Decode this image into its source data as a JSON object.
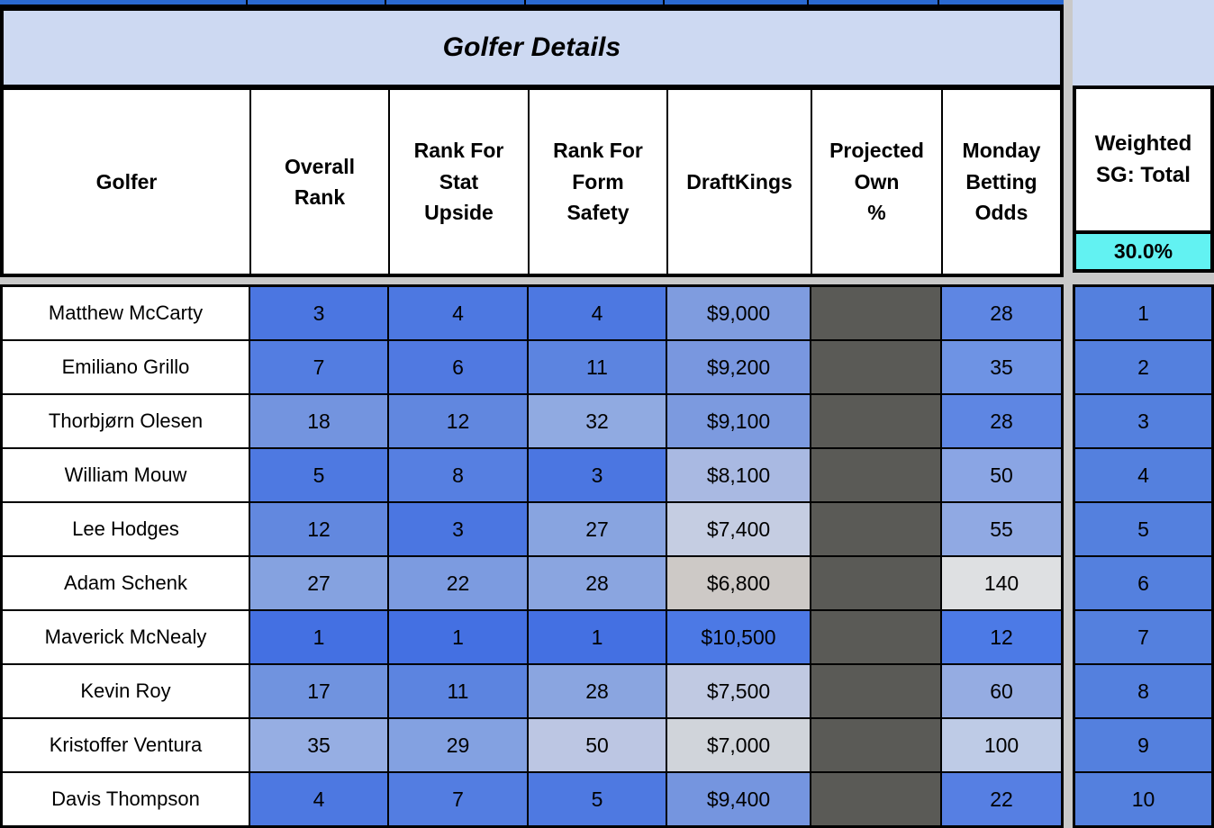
{
  "title": "Golfer Details",
  "colors": {
    "page_bg": "#C9C9C9",
    "band_lavender": "#CDD9F2",
    "cyan": "#62F2F2",
    "top_row_blue": "#2A69D0",
    "projected_own_gray": "#5A5A56",
    "weighted_blue": "#5480DE",
    "border": "#000000",
    "header_bg": "#FFFFFF"
  },
  "columns": [
    {
      "id": "golfer",
      "label": "Golfer"
    },
    {
      "id": "overall_rank",
      "label": "Overall\nRank"
    },
    {
      "id": "rank_stat_upside",
      "label": "Rank For\nStat\nUpside"
    },
    {
      "id": "rank_form_safety",
      "label": "Rank For\nForm\nSafety"
    },
    {
      "id": "draftkings",
      "label": "DraftKings"
    },
    {
      "id": "projected_own",
      "label": "Projected\nOwn\n%"
    },
    {
      "id": "monday_betting_odds",
      "label": "Monday\nBetting\nOdds"
    }
  ],
  "weighted_panel": {
    "label": "Weighted\nSG: Total",
    "weight_value": "30.0%"
  },
  "rows": [
    {
      "name": "Matthew McCarty",
      "cells": [
        {
          "field": "overall_rank",
          "value": "3",
          "bg": "#4B76E1"
        },
        {
          "field": "rank_stat_upside",
          "value": "4",
          "bg": "#4D78E1"
        },
        {
          "field": "rank_form_safety",
          "value": "4",
          "bg": "#4D78E1"
        },
        {
          "field": "draftkings",
          "value": "$9,000",
          "bg": "#7F9CDF"
        },
        {
          "field": "projected_own",
          "value": "",
          "bg": "#5A5A56"
        },
        {
          "field": "monday_betting_odds",
          "value": "28",
          "bg": "#5E86E3"
        }
      ],
      "weighted": {
        "value": "1",
        "bg": "#5480DE"
      }
    },
    {
      "name": "Emiliano Grillo",
      "cells": [
        {
          "field": "overall_rank",
          "value": "7",
          "bg": "#537DE1"
        },
        {
          "field": "rank_stat_upside",
          "value": "6",
          "bg": "#5079E1"
        },
        {
          "field": "rank_form_safety",
          "value": "11",
          "bg": "#5C84E0"
        },
        {
          "field": "draftkings",
          "value": "$9,200",
          "bg": "#7997DF"
        },
        {
          "field": "projected_own",
          "value": "",
          "bg": "#5A5A56"
        },
        {
          "field": "monday_betting_odds",
          "value": "35",
          "bg": "#6E93E4"
        }
      ],
      "weighted": {
        "value": "2",
        "bg": "#5480DE"
      }
    },
    {
      "name": "Thorbjørn Olesen",
      "cells": [
        {
          "field": "overall_rank",
          "value": "18",
          "bg": "#7394DF"
        },
        {
          "field": "rank_stat_upside",
          "value": "12",
          "bg": "#6187DF"
        },
        {
          "field": "rank_form_safety",
          "value": "32",
          "bg": "#90AAE1"
        },
        {
          "field": "draftkings",
          "value": "$9,100",
          "bg": "#7C9ADF"
        },
        {
          "field": "projected_own",
          "value": "",
          "bg": "#5A5A56"
        },
        {
          "field": "monday_betting_odds",
          "value": "28",
          "bg": "#5E86E3"
        }
      ],
      "weighted": {
        "value": "3",
        "bg": "#5480DE"
      }
    },
    {
      "name": "William Mouw",
      "cells": [
        {
          "field": "overall_rank",
          "value": "5",
          "bg": "#4E79E1"
        },
        {
          "field": "rank_stat_upside",
          "value": "8",
          "bg": "#567FE1"
        },
        {
          "field": "rank_form_safety",
          "value": "3",
          "bg": "#4B76E1"
        },
        {
          "field": "draftkings",
          "value": "$8,100",
          "bg": "#A9B9E2"
        },
        {
          "field": "projected_own",
          "value": "",
          "bg": "#5A5A56"
        },
        {
          "field": "monday_betting_odds",
          "value": "50",
          "bg": "#8AA5E4"
        }
      ],
      "weighted": {
        "value": "4",
        "bg": "#5480DE"
      }
    },
    {
      "name": "Lee Hodges",
      "cells": [
        {
          "field": "overall_rank",
          "value": "12",
          "bg": "#6288DF"
        },
        {
          "field": "rank_stat_upside",
          "value": "3",
          "bg": "#4B76E1"
        },
        {
          "field": "rank_form_safety",
          "value": "27",
          "bg": "#88A4E0"
        },
        {
          "field": "draftkings",
          "value": "$7,400",
          "bg": "#C5CDE2"
        },
        {
          "field": "projected_own",
          "value": "",
          "bg": "#5A5A56"
        },
        {
          "field": "monday_betting_odds",
          "value": "55",
          "bg": "#90A9E3"
        }
      ],
      "weighted": {
        "value": "5",
        "bg": "#5480DE"
      }
    },
    {
      "name": "Adam Schenk",
      "cells": [
        {
          "field": "overall_rank",
          "value": "27",
          "bg": "#85A2E0"
        },
        {
          "field": "rank_stat_upside",
          "value": "22",
          "bg": "#7C9BE0"
        },
        {
          "field": "rank_form_safety",
          "value": "28",
          "bg": "#8AA5E0"
        },
        {
          "field": "draftkings",
          "value": "$6,800",
          "bg": "#CDC9C6"
        },
        {
          "field": "projected_own",
          "value": "",
          "bg": "#5A5A56"
        },
        {
          "field": "monday_betting_odds",
          "value": "140",
          "bg": "#DEE0E2"
        }
      ],
      "weighted": {
        "value": "6",
        "bg": "#5480DE"
      }
    },
    {
      "name": "Maverick McNealy",
      "cells": [
        {
          "field": "overall_rank",
          "value": "1",
          "bg": "#4470E2"
        },
        {
          "field": "rank_stat_upside",
          "value": "1",
          "bg": "#4470E2"
        },
        {
          "field": "rank_form_safety",
          "value": "1",
          "bg": "#4470E2"
        },
        {
          "field": "draftkings",
          "value": "$10,500",
          "bg": "#4C79E5"
        },
        {
          "field": "projected_own",
          "value": "",
          "bg": "#5A5A56"
        },
        {
          "field": "monday_betting_odds",
          "value": "12",
          "bg": "#4C7AE6"
        }
      ],
      "weighted": {
        "value": "7",
        "bg": "#5480DE"
      }
    },
    {
      "name": "Kevin Roy",
      "cells": [
        {
          "field": "overall_rank",
          "value": "17",
          "bg": "#7093DF"
        },
        {
          "field": "rank_stat_upside",
          "value": "11",
          "bg": "#5C84E0"
        },
        {
          "field": "rank_form_safety",
          "value": "28",
          "bg": "#8AA5E0"
        },
        {
          "field": "draftkings",
          "value": "$7,500",
          "bg": "#C0C9E2"
        },
        {
          "field": "projected_own",
          "value": "",
          "bg": "#5A5A56"
        },
        {
          "field": "monday_betting_odds",
          "value": "60",
          "bg": "#95ACE2"
        }
      ],
      "weighted": {
        "value": "8",
        "bg": "#5480DE"
      }
    },
    {
      "name": "Kristoffer Ventura",
      "cells": [
        {
          "field": "overall_rank",
          "value": "35",
          "bg": "#96AEE3"
        },
        {
          "field": "rank_stat_upside",
          "value": "29",
          "bg": "#83A1E1"
        },
        {
          "field": "rank_form_safety",
          "value": "50",
          "bg": "#BCC6E3"
        },
        {
          "field": "draftkings",
          "value": "$7,000",
          "bg": "#D0D4DA"
        },
        {
          "field": "projected_own",
          "value": "",
          "bg": "#5A5A56"
        },
        {
          "field": "monday_betting_odds",
          "value": "100",
          "bg": "#BECBE6"
        }
      ],
      "weighted": {
        "value": "9",
        "bg": "#5480DE"
      }
    },
    {
      "name": "Davis Thompson",
      "cells": [
        {
          "field": "overall_rank",
          "value": "4",
          "bg": "#4D78E1"
        },
        {
          "field": "rank_stat_upside",
          "value": "7",
          "bg": "#537DE1"
        },
        {
          "field": "rank_form_safety",
          "value": "5",
          "bg": "#4E79E1"
        },
        {
          "field": "draftkings",
          "value": "$9,400",
          "bg": "#7595DF"
        },
        {
          "field": "projected_own",
          "value": "",
          "bg": "#5A5A56"
        },
        {
          "field": "monday_betting_odds",
          "value": "22",
          "bg": "#567FE3"
        }
      ],
      "weighted": {
        "value": "10",
        "bg": "#5480DE"
      }
    }
  ]
}
